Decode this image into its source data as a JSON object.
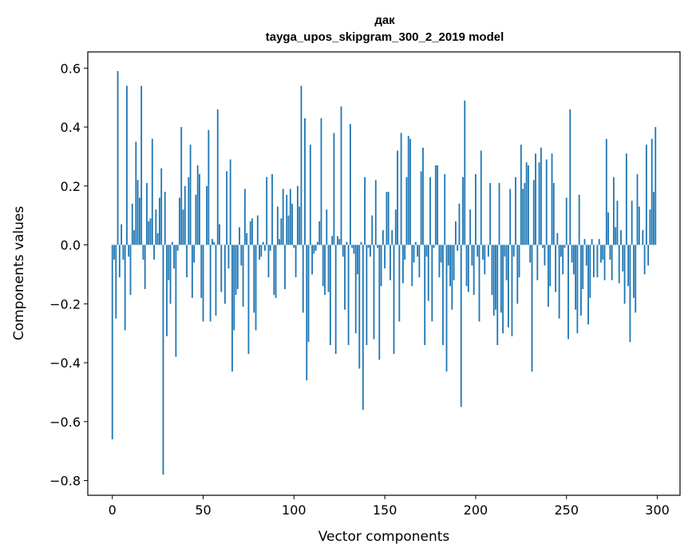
{
  "chart_data": {
    "type": "bar",
    "title": "дак",
    "subtitle": "tayga_upos_skipgram_300_2_2019 model",
    "xlabel": "Vector components",
    "ylabel": "Components values",
    "xlim": [
      -13.5,
      312.5
    ],
    "ylim": [
      -0.85,
      0.655
    ],
    "xticks": [
      0,
      50,
      100,
      150,
      200,
      250,
      300
    ],
    "yticks": [
      0.6,
      0.4,
      0.2,
      0.0,
      -0.2,
      -0.4,
      -0.6,
      -0.8
    ],
    "ytick_labels": [
      "0.6",
      "0.4",
      "0.2",
      "0.0",
      "−0.2",
      "−0.4",
      "−0.6",
      "−0.8"
    ],
    "color": "#1f77b4",
    "values": [
      -0.66,
      -0.05,
      -0.25,
      0.59,
      -0.11,
      0.07,
      -0.05,
      -0.29,
      0.54,
      -0.04,
      -0.17,
      0.14,
      0.05,
      0.35,
      0.22,
      0.16,
      0.54,
      -0.05,
      -0.15,
      0.21,
      0.08,
      0.09,
      0.36,
      -0.05,
      0.12,
      0.04,
      0.16,
      0.26,
      -0.78,
      0.18,
      -0.31,
      -0.12,
      -0.2,
      0.01,
      -0.08,
      -0.38,
      -0.02,
      0.16,
      0.4,
      0.12,
      0.2,
      -0.11,
      0.23,
      0.34,
      -0.18,
      -0.06,
      0.17,
      0.27,
      0.24,
      -0.18,
      -0.26,
      0.0,
      0.2,
      0.39,
      -0.26,
      0.02,
      0.01,
      -0.24,
      0.46,
      0.07,
      -0.16,
      0.0,
      -0.2,
      0.25,
      -0.08,
      0.29,
      -0.43,
      -0.29,
      -0.17,
      -0.15,
      0.06,
      -0.07,
      -0.21,
      0.19,
      0.04,
      -0.37,
      0.08,
      0.09,
      -0.23,
      -0.29,
      0.1,
      -0.05,
      -0.04,
      0.01,
      -0.02,
      0.23,
      -0.11,
      -0.02,
      0.24,
      -0.17,
      -0.18,
      0.13,
      0.02,
      0.09,
      0.19,
      -0.15,
      0.17,
      0.1,
      0.19,
      0.14,
      -0.01,
      -0.11,
      0.2,
      0.13,
      0.54,
      -0.23,
      0.43,
      -0.46,
      -0.33,
      0.34,
      -0.1,
      -0.03,
      -0.02,
      0.01,
      0.08,
      0.43,
      -0.14,
      -0.17,
      0.12,
      -0.16,
      -0.34,
      0.03,
      0.38,
      -0.37,
      0.03,
      0.02,
      0.47,
      -0.04,
      -0.22,
      0.01,
      -0.34,
      0.41,
      -0.01,
      -0.03,
      -0.3,
      -0.1,
      -0.42,
      0.01,
      -0.56,
      0.23,
      -0.34,
      -0.01,
      -0.04,
      0.1,
      -0.32,
      0.22,
      -0.01,
      -0.39,
      -0.14,
      0.05,
      -0.08,
      0.18,
      0.18,
      -0.12,
      0.05,
      -0.37,
      0.12,
      0.32,
      -0.26,
      0.38,
      -0.13,
      -0.05,
      0.23,
      0.37,
      0.36,
      -0.14,
      -0.06,
      0.01,
      -0.04,
      -0.11,
      0.25,
      0.33,
      -0.34,
      -0.04,
      -0.19,
      0.23,
      -0.26,
      -0.01,
      0.27,
      0.27,
      -0.11,
      -0.06,
      -0.34,
      0.24,
      -0.43,
      -0.07,
      -0.14,
      -0.22,
      -0.12,
      0.08,
      -0.02,
      0.14,
      -0.55,
      0.23,
      0.49,
      -0.14,
      -0.16,
      0.12,
      -0.07,
      -0.17,
      0.24,
      -0.04,
      -0.26,
      0.32,
      -0.05,
      -0.1,
      0.0,
      -0.04,
      0.21,
      -0.17,
      -0.24,
      -0.22,
      -0.34,
      0.21,
      -0.23,
      -0.3,
      -0.04,
      -0.12,
      -0.28,
      0.19,
      -0.31,
      -0.04,
      0.23,
      -0.2,
      -0.11,
      0.34,
      0.19,
      0.21,
      0.28,
      0.27,
      -0.06,
      -0.43,
      0.22,
      0.31,
      -0.12,
      0.28,
      0.33,
      -0.01,
      -0.07,
      0.29,
      -0.21,
      -0.14,
      0.31,
      0.21,
      -0.16,
      0.04,
      -0.25,
      -0.04,
      -0.1,
      -0.01,
      0.16,
      -0.32,
      0.46,
      -0.06,
      -0.1,
      -0.22,
      -0.3,
      0.17,
      -0.24,
      -0.15,
      0.02,
      -0.07,
      -0.27,
      -0.18,
      0.02,
      -0.11,
      0.0,
      -0.11,
      0.02,
      -0.06,
      -0.05,
      -0.12,
      0.36,
      0.11,
      -0.05,
      -0.12,
      0.23,
      0.06,
      0.15,
      -0.13,
      0.05,
      -0.09,
      -0.2,
      0.31,
      -0.14,
      -0.33,
      0.15,
      -0.18,
      -0.23,
      0.24,
      0.13,
      0.0,
      0.05,
      -0.1,
      0.34,
      -0.07,
      0.12,
      0.36,
      0.18,
      0.4
    ]
  }
}
